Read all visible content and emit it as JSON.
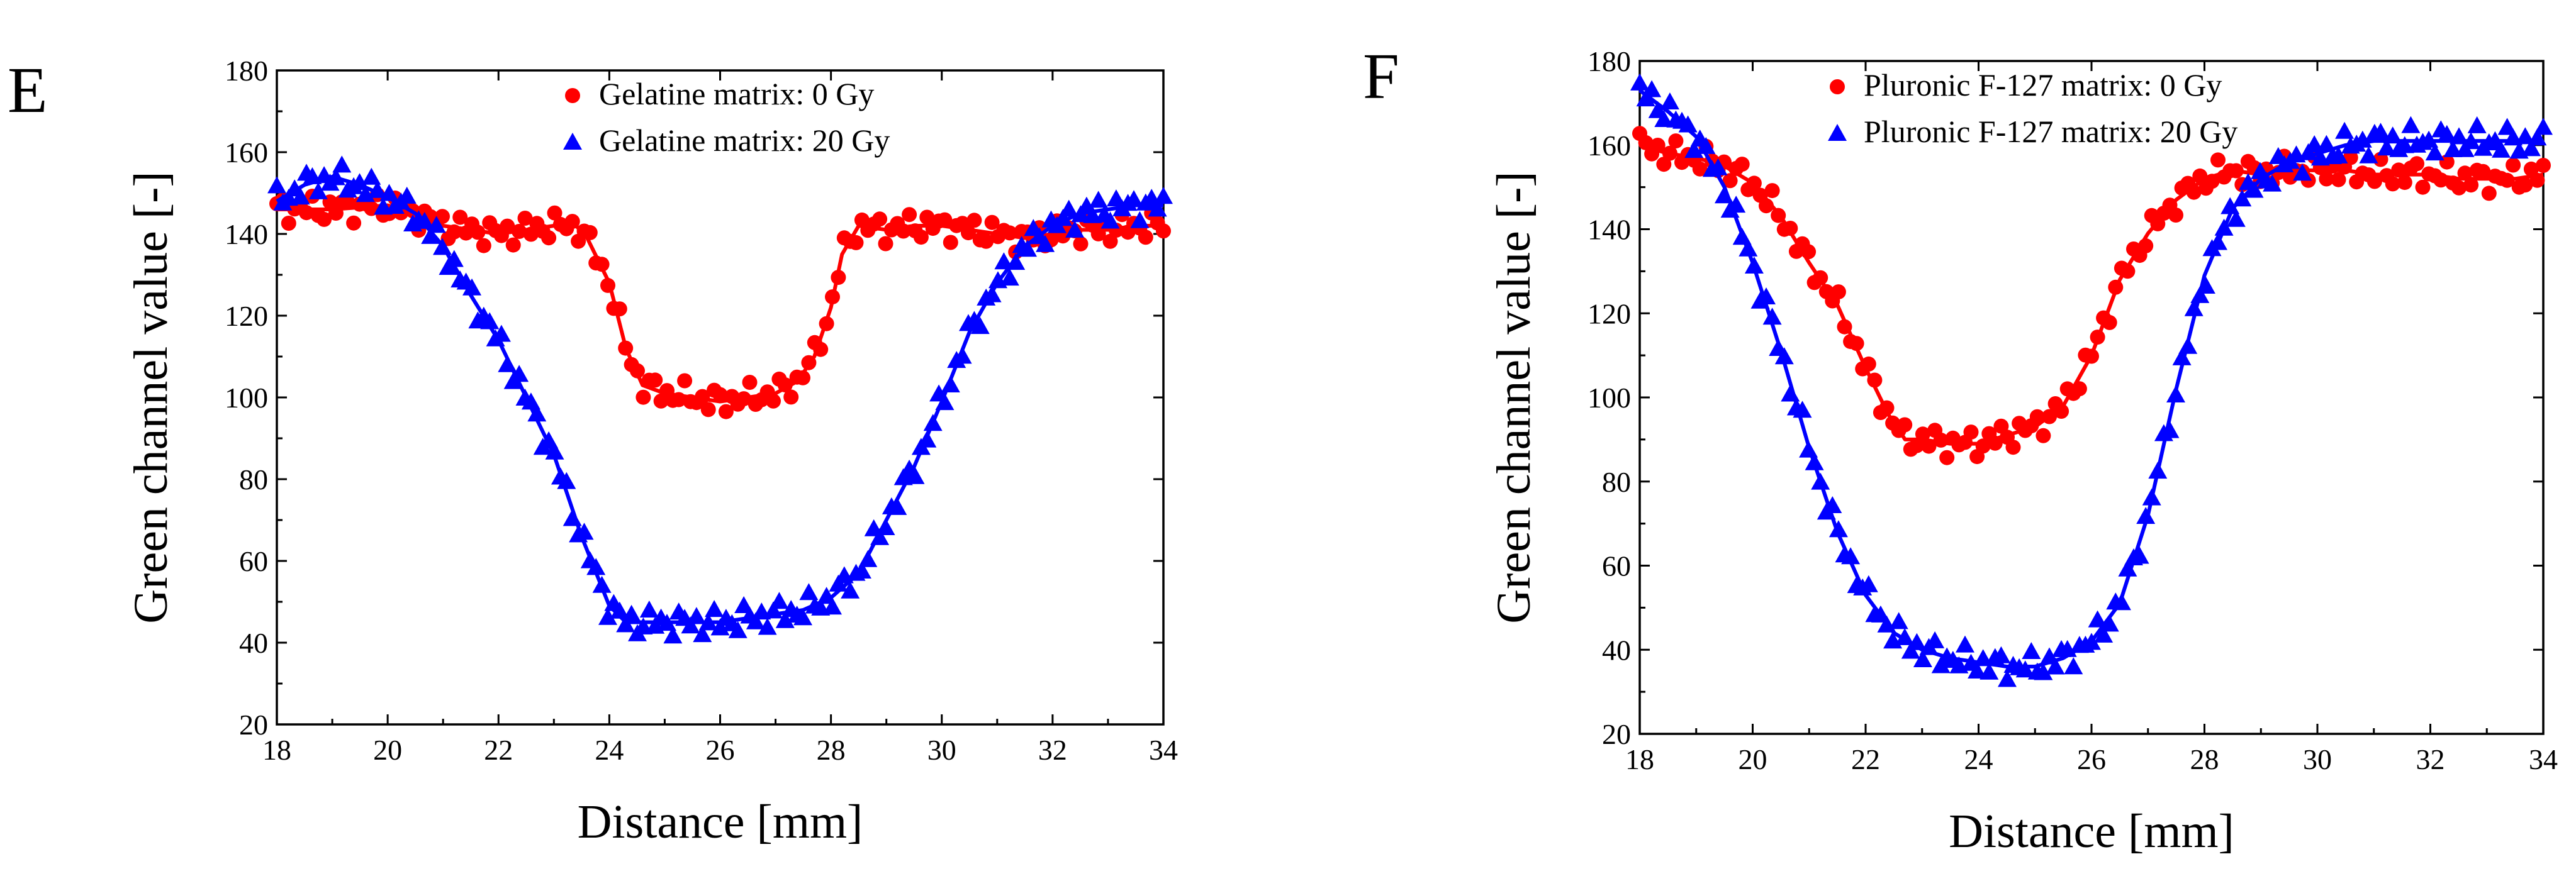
{
  "chart_data": [
    {
      "panel": "E",
      "type": "scatter",
      "xlabel": "Distance [mm]",
      "ylabel": "Green channel value [-]",
      "xlim": [
        18,
        34
      ],
      "ylim": [
        20,
        180
      ],
      "xticks": [
        18,
        20,
        22,
        24,
        26,
        28,
        30,
        32,
        34
      ],
      "yticks": [
        20,
        40,
        60,
        80,
        100,
        120,
        140,
        160,
        180
      ],
      "grid": false,
      "legend_position": "top-center",
      "series": [
        {
          "name": "Gelatine matrix: 0 Gy",
          "color": "#ff0000",
          "marker": "circle",
          "points": [
            [
              18.0,
              146
            ],
            [
              19.0,
              146
            ],
            [
              20.0,
              147
            ],
            [
              20.5,
              145
            ],
            [
              21.0,
              142
            ],
            [
              21.5,
              141
            ],
            [
              22.0,
              140
            ],
            [
              22.5,
              141
            ],
            [
              23.0,
              142
            ],
            [
              23.4,
              142
            ],
            [
              23.6,
              139
            ],
            [
              24.0,
              128
            ],
            [
              24.3,
              112
            ],
            [
              24.6,
              103
            ],
            [
              25.0,
              101
            ],
            [
              25.5,
              100
            ],
            [
              26.0,
              99
            ],
            [
              26.5,
              100
            ],
            [
              27.0,
              101
            ],
            [
              27.4,
              104
            ],
            [
              27.7,
              110
            ],
            [
              28.0,
              122
            ],
            [
              28.2,
              135
            ],
            [
              28.5,
              142
            ],
            [
              29.0,
              141
            ],
            [
              29.5,
              142
            ],
            [
              30.0,
              142
            ],
            [
              30.5,
              141
            ],
            [
              31.0,
              140
            ],
            [
              31.5,
              139
            ],
            [
              32.0,
              140
            ],
            [
              32.5,
              141
            ],
            [
              33.0,
              141
            ],
            [
              33.5,
              142
            ],
            [
              34.0,
              142
            ]
          ]
        },
        {
          "name": "Gelatine matrix: 20 Gy",
          "color": "#0000ff",
          "marker": "triangle",
          "points": [
            [
              18.0,
              148
            ],
            [
              18.5,
              152
            ],
            [
              19.0,
              154
            ],
            [
              19.5,
              152
            ],
            [
              20.0,
              149
            ],
            [
              20.5,
              145
            ],
            [
              21.0,
              137
            ],
            [
              21.5,
              125
            ],
            [
              22.0,
              114
            ],
            [
              22.5,
              100
            ],
            [
              23.0,
              86
            ],
            [
              23.5,
              66
            ],
            [
              24.0,
              49
            ],
            [
              24.3,
              45
            ],
            [
              24.8,
              45
            ],
            [
              25.5,
              45
            ],
            [
              26.0,
              45
            ],
            [
              26.5,
              46
            ],
            [
              27.0,
              47
            ],
            [
              27.5,
              48
            ],
            [
              28.0,
              51
            ],
            [
              28.5,
              57
            ],
            [
              29.0,
              70
            ],
            [
              29.5,
              83
            ],
            [
              30.0,
              99
            ],
            [
              30.5,
              116
            ],
            [
              31.0,
              128
            ],
            [
              31.5,
              137
            ],
            [
              32.0,
              142
            ],
            [
              32.5,
              145
            ],
            [
              33.0,
              146
            ],
            [
              33.5,
              147
            ],
            [
              34.0,
              147
            ]
          ]
        }
      ]
    },
    {
      "panel": "F",
      "type": "scatter",
      "xlabel": "Distance [mm]",
      "ylabel": "Green channel value [-]",
      "xlim": [
        18,
        34
      ],
      "ylim": [
        20,
        180
      ],
      "xticks": [
        18,
        20,
        22,
        24,
        26,
        28,
        30,
        32,
        34
      ],
      "yticks": [
        20,
        40,
        60,
        80,
        100,
        120,
        140,
        160,
        180
      ],
      "grid": false,
      "legend_position": "top-center",
      "series": [
        {
          "name": "Pluronic F-127 matrix: 0 Gy",
          "color": "#ff0000",
          "marker": "circle",
          "points": [
            [
              18.0,
              160
            ],
            [
              18.5,
              158
            ],
            [
              19.0,
              157
            ],
            [
              19.5,
              155
            ],
            [
              20.0,
              151
            ],
            [
              20.5,
              143
            ],
            [
              21.0,
              132
            ],
            [
              21.5,
              122
            ],
            [
              22.0,
              107
            ],
            [
              22.4,
              96
            ],
            [
              22.7,
              90
            ],
            [
              23.0,
              90
            ],
            [
              23.5,
              89
            ],
            [
              24.0,
              89
            ],
            [
              24.5,
              91
            ],
            [
              25.0,
              93
            ],
            [
              25.5,
              98
            ],
            [
              26.0,
              110
            ],
            [
              26.5,
              128
            ],
            [
              27.0,
              139
            ],
            [
              27.5,
              147
            ],
            [
              28.0,
              152
            ],
            [
              28.5,
              154
            ],
            [
              29.0,
              153
            ],
            [
              29.5,
              154
            ],
            [
              30.0,
              154
            ],
            [
              30.5,
              154
            ],
            [
              31.0,
              153
            ],
            [
              31.5,
              153
            ],
            [
              32.0,
              153
            ],
            [
              32.5,
              152
            ],
            [
              33.0,
              152
            ],
            [
              33.5,
              152
            ],
            [
              34.0,
              153
            ]
          ]
        },
        {
          "name": "Pluronic F-127 matrix: 20 Gy",
          "color": "#0000ff",
          "marker": "triangle",
          "points": [
            [
              18.0,
              173
            ],
            [
              18.5,
              168
            ],
            [
              19.0,
              162
            ],
            [
              19.5,
              150
            ],
            [
              20.0,
              132
            ],
            [
              20.5,
              111
            ],
            [
              21.0,
              88
            ],
            [
              21.5,
              68
            ],
            [
              22.0,
              53
            ],
            [
              22.5,
              44
            ],
            [
              23.0,
              40
            ],
            [
              23.5,
              38
            ],
            [
              24.0,
              37
            ],
            [
              24.5,
              36
            ],
            [
              25.0,
              36
            ],
            [
              25.5,
              38
            ],
            [
              26.0,
              42
            ],
            [
              26.5,
              51
            ],
            [
              27.0,
              72
            ],
            [
              27.5,
              102
            ],
            [
              28.0,
              129
            ],
            [
              28.5,
              145
            ],
            [
              29.0,
              152
            ],
            [
              29.5,
              156
            ],
            [
              30.0,
              158
            ],
            [
              30.5,
              160
            ],
            [
              31.0,
              161
            ],
            [
              31.5,
              161
            ],
            [
              32.0,
              161
            ],
            [
              32.5,
              161
            ],
            [
              33.0,
              161
            ],
            [
              33.5,
              161
            ],
            [
              34.0,
              161
            ]
          ]
        }
      ]
    }
  ]
}
